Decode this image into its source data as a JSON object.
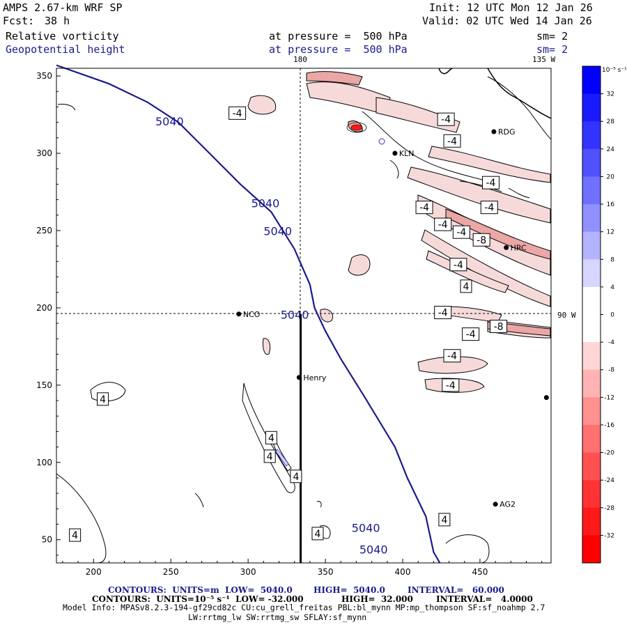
{
  "header": {
    "model": "AMPS 2.67-km WRF SP",
    "forecast_label": "Fcst:",
    "forecast_hours": "38 h",
    "init": "Init: 12 UTC Mon 12 Jan 26",
    "valid": "Valid: 02 UTC Wed 14 Jan 26",
    "field1_name": "Relative vorticity",
    "field1_level": "at pressure =  500 hPa",
    "field1_sm": "sm= 2",
    "field2_name": "Geopotential height",
    "field2_level": "at pressure =  500 hPa",
    "field2_sm": "sm= 2",
    "lon_top_left": "180",
    "lon_top_right": "135 W",
    "lon_right": "90 W"
  },
  "colors": {
    "height_contour": "#1a1a8c",
    "positive_vort": "#3333cc",
    "negative_vort": "#e01010",
    "neg_fill_light": "#f6dada",
    "neg_fill_mid": "#eba6a6"
  },
  "chart_data": {
    "type": "contour-map",
    "xlim": [
      176,
      496
    ],
    "ylim": [
      35,
      355
    ],
    "xticks": [
      200,
      250,
      300,
      350,
      400,
      450
    ],
    "yticks": [
      50,
      100,
      150,
      200,
      250,
      300,
      350
    ],
    "colorbar": {
      "unit_label": "10⁻⁵ s⁻¹",
      "levels": [
        32,
        28,
        24,
        20,
        16,
        12,
        8,
        4,
        0,
        -4,
        -8,
        -12,
        -16,
        -20,
        -24,
        -28,
        -32
      ],
      "colors": [
        "#0000ff",
        "#1a1aff",
        "#3333ff",
        "#5050ff",
        "#7070ff",
        "#9090ff",
        "#b3b3ff",
        "#d6d6ff",
        "#ffffff",
        "#ffffff",
        "#ffd6d6",
        "#ffb3b3",
        "#ff9090",
        "#ff7070",
        "#ff5050",
        "#ff3333",
        "#ff1a1a",
        "#ff0000"
      ]
    },
    "height_contours": [
      {
        "label": "5040",
        "value": 5040,
        "points": [
          [
            176,
            357
          ],
          [
            210,
            345
          ],
          [
            235,
            333
          ],
          [
            255,
            320
          ],
          [
            275,
            300
          ],
          [
            295,
            280
          ],
          [
            315,
            262
          ],
          [
            330,
            238
          ],
          [
            340,
            215
          ],
          [
            343,
            200
          ],
          [
            350,
            185
          ],
          [
            360,
            167
          ],
          [
            375,
            143
          ],
          [
            395,
            110
          ],
          [
            403,
            90
          ],
          [
            415,
            65
          ],
          [
            420,
            42
          ],
          [
            424,
            35
          ]
        ]
      }
    ],
    "height_labels": [
      {
        "text": "5040",
        "x": 240,
        "y": 318
      },
      {
        "text": "5040",
        "x": 302,
        "y": 265
      },
      {
        "text": "5040",
        "x": 310,
        "y": 247
      },
      {
        "text": "5040",
        "x": 321,
        "y": 193
      },
      {
        "text": "5040",
        "x": 367,
        "y": 55
      },
      {
        "text": "5040",
        "x": 372,
        "y": 41
      }
    ],
    "vorticity_labels": [
      {
        "text": "-4",
        "x": 293,
        "y": 326
      },
      {
        "text": "-4",
        "x": 428,
        "y": 322
      },
      {
        "text": "-4",
        "x": 432,
        "y": 308
      },
      {
        "text": "-4",
        "x": 457,
        "y": 281
      },
      {
        "text": "-4",
        "x": 414,
        "y": 265
      },
      {
        "text": "-4",
        "x": 456,
        "y": 265
      },
      {
        "text": "-4",
        "x": 426,
        "y": 254
      },
      {
        "text": "-4",
        "x": 438,
        "y": 249
      },
      {
        "text": "-8",
        "x": 451,
        "y": 244
      },
      {
        "text": "-4",
        "x": 436,
        "y": 228
      },
      {
        "text": "4",
        "x": 441,
        "y": 214
      },
      {
        "text": "-4",
        "x": 426,
        "y": 197
      },
      {
        "text": "-8",
        "x": 462,
        "y": 188
      },
      {
        "text": "-4",
        "x": 444,
        "y": 183
      },
      {
        "text": "-4",
        "x": 432,
        "y": 169
      },
      {
        "text": "-4",
        "x": 431,
        "y": 150
      },
      {
        "text": "4",
        "x": 206,
        "y": 141
      },
      {
        "text": "4",
        "x": 315,
        "y": 116
      },
      {
        "text": "4",
        "x": 314,
        "y": 104
      },
      {
        "text": "4",
        "x": 331,
        "y": 91
      },
      {
        "text": "4",
        "x": 188,
        "y": 53
      },
      {
        "text": "4",
        "x": 345,
        "y": 54
      },
      {
        "text": "4",
        "x": 427,
        "y": 63
      }
    ],
    "stations": [
      {
        "name": "RDG",
        "x": 459,
        "y": 314
      },
      {
        "name": "KLN",
        "x": 395,
        "y": 300
      },
      {
        "name": "HRC",
        "x": 467,
        "y": 239
      },
      {
        "name": "NCO",
        "x": 294,
        "y": 196
      },
      {
        "name": "Henry",
        "x": 333,
        "y": 155
      },
      {
        "name": "AG2",
        "x": 460,
        "y": 73
      },
      {
        "name": "",
        "x": 493,
        "y": 142
      }
    ],
    "cross_section": {
      "x": 334,
      "y_top": 196,
      "y_bottom": 35
    }
  },
  "footer": {
    "line1_units": "CONTOURS:  UNITS=m  LOW=  5040.0",
    "line1_high": "HIGH=  5040.0",
    "line1_interval": "INTERVAL=   60.000",
    "line2_units": "CONTOURS:  UNITS=10⁻⁵ s⁻¹  LOW= -32.000",
    "line2_high": "HIGH=  32.000",
    "line2_interval": "INTERVAL=   4.0000",
    "line3": "Model Info: MPASv8.2.3-194-gf29cd82c CU:cu_grell_freitas PBL:bl_mynn MP:mp_thompson SF:sf_noahmp 2.7",
    "line4": "LW:rrtmg_lw SW:rrtmg_sw SFLAY:sf_mynn"
  }
}
